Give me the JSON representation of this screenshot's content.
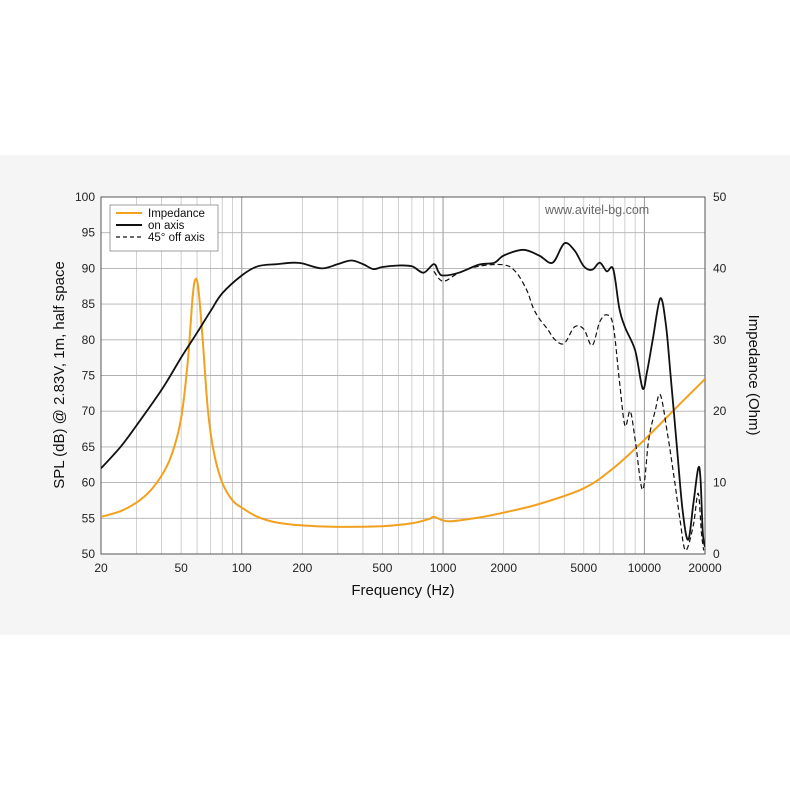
{
  "chart_data": {
    "type": "line",
    "title": "",
    "xlabel": "Frequency (Hz)",
    "ylabel": "SPL (dB) @ 2.83V, 1m, half space",
    "y2label": "Impedance (Ohm)",
    "xscale": "log",
    "xlim": [
      20,
      20000
    ],
    "ylim": [
      50,
      100
    ],
    "y2lim": [
      0,
      50
    ],
    "grid": true,
    "legend": "top-left",
    "annotation": "www.avitel-bg.com",
    "x_ticks": [
      {
        "value": 20,
        "label": "20"
      },
      {
        "value": 50,
        "label": "50"
      },
      {
        "value": 100,
        "label": "100"
      },
      {
        "value": 200,
        "label": "200"
      },
      {
        "value": 500,
        "label": "500"
      },
      {
        "value": 1000,
        "label": "1000"
      },
      {
        "value": 2000,
        "label": "2000"
      },
      {
        "value": 5000,
        "label": "5000"
      },
      {
        "value": 10000,
        "label": "10000"
      },
      {
        "value": 20000,
        "label": "20000"
      }
    ],
    "y_ticks": [
      "50",
      "55",
      "60",
      "65",
      "70",
      "75",
      "80",
      "85",
      "90",
      "95",
      "100"
    ],
    "y2_ticks": [
      "0",
      "10",
      "20",
      "30",
      "40",
      "50"
    ],
    "series": [
      {
        "name": "Impedance",
        "axis": "right",
        "color": "#f2a11f",
        "style": "solid",
        "points": [
          [
            20,
            5.2
          ],
          [
            25,
            6
          ],
          [
            30,
            7.2
          ],
          [
            35,
            8.8
          ],
          [
            40,
            11
          ],
          [
            45,
            14
          ],
          [
            50,
            19
          ],
          [
            54,
            27
          ],
          [
            57,
            36
          ],
          [
            59,
            38.5
          ],
          [
            61,
            37
          ],
          [
            64,
            30
          ],
          [
            68,
            20
          ],
          [
            73,
            14
          ],
          [
            80,
            10
          ],
          [
            90,
            7.5
          ],
          [
            100,
            6.5
          ],
          [
            120,
            5.2
          ],
          [
            150,
            4.4
          ],
          [
            200,
            4
          ],
          [
            300,
            3.8
          ],
          [
            500,
            3.9
          ],
          [
            700,
            4.3
          ],
          [
            850,
            4.9
          ],
          [
            900,
            5.2
          ],
          [
            1000,
            4.7
          ],
          [
            1100,
            4.6
          ],
          [
            1500,
            5.1
          ],
          [
            2000,
            5.8
          ],
          [
            3000,
            7
          ],
          [
            5000,
            9.2
          ],
          [
            7000,
            12
          ],
          [
            10000,
            16
          ],
          [
            15000,
            21
          ],
          [
            20000,
            24.5
          ]
        ]
      },
      {
        "name": "on axis",
        "axis": "left",
        "color": "#111111",
        "style": "solid",
        "points": [
          [
            20,
            62
          ],
          [
            25,
            65
          ],
          [
            30,
            68
          ],
          [
            40,
            73
          ],
          [
            50,
            77.5
          ],
          [
            60,
            81
          ],
          [
            70,
            84
          ],
          [
            80,
            86.5
          ],
          [
            100,
            89
          ],
          [
            120,
            90.3
          ],
          [
            150,
            90.6
          ],
          [
            180,
            90.8
          ],
          [
            200,
            90.7
          ],
          [
            250,
            90
          ],
          [
            300,
            90.6
          ],
          [
            350,
            91.1
          ],
          [
            400,
            90.6
          ],
          [
            450,
            89.9
          ],
          [
            500,
            90.2
          ],
          [
            600,
            90.4
          ],
          [
            700,
            90.3
          ],
          [
            800,
            89.4
          ],
          [
            900,
            90.6
          ],
          [
            950,
            89.5
          ],
          [
            1000,
            89
          ],
          [
            1200,
            89.4
          ],
          [
            1500,
            90.5
          ],
          [
            1800,
            90.8
          ],
          [
            2000,
            91.8
          ],
          [
            2500,
            92.6
          ],
          [
            3000,
            91.8
          ],
          [
            3500,
            90.8
          ],
          [
            4000,
            93.5
          ],
          [
            4500,
            92.5
          ],
          [
            5000,
            90.3
          ],
          [
            5500,
            89.8
          ],
          [
            6000,
            90.8
          ],
          [
            6500,
            89.6
          ],
          [
            7000,
            89.9
          ],
          [
            7500,
            84.5
          ],
          [
            8000,
            81.8
          ],
          [
            9000,
            78.5
          ],
          [
            9800,
            73.2
          ],
          [
            10300,
            75.5
          ],
          [
            11000,
            80
          ],
          [
            12000,
            85.8
          ],
          [
            12800,
            82
          ],
          [
            13500,
            75
          ],
          [
            14500,
            65
          ],
          [
            15500,
            56
          ],
          [
            16500,
            52
          ],
          [
            17500,
            57
          ],
          [
            18500,
            62
          ],
          [
            19000,
            60.5
          ],
          [
            19500,
            53
          ],
          [
            20000,
            51
          ]
        ]
      },
      {
        "name": "45° off axis",
        "axis": "left",
        "color": "#111111",
        "style": "dashed",
        "points": [
          [
            900,
            89.6
          ],
          [
            1000,
            88.2
          ],
          [
            1200,
            89.4
          ],
          [
            1500,
            90.3
          ],
          [
            2000,
            90.5
          ],
          [
            2300,
            89.5
          ],
          [
            2600,
            87
          ],
          [
            2800,
            84.5
          ],
          [
            3000,
            83
          ],
          [
            3300,
            81.5
          ],
          [
            3600,
            80
          ],
          [
            4000,
            79.5
          ],
          [
            4500,
            81.8
          ],
          [
            5000,
            81.5
          ],
          [
            5500,
            79.2
          ],
          [
            6000,
            82.5
          ],
          [
            6500,
            83.5
          ],
          [
            7000,
            82
          ],
          [
            7500,
            74.5
          ],
          [
            8000,
            68
          ],
          [
            8500,
            70
          ],
          [
            9000,
            66
          ],
          [
            9800,
            59
          ],
          [
            10500,
            66
          ],
          [
            11300,
            70
          ],
          [
            12000,
            72.3
          ],
          [
            13000,
            67
          ],
          [
            14000,
            61
          ],
          [
            15000,
            55
          ],
          [
            16000,
            50.5
          ],
          [
            17500,
            54
          ],
          [
            18500,
            58.5
          ],
          [
            19200,
            53
          ],
          [
            19700,
            50.5
          ]
        ]
      }
    ]
  }
}
